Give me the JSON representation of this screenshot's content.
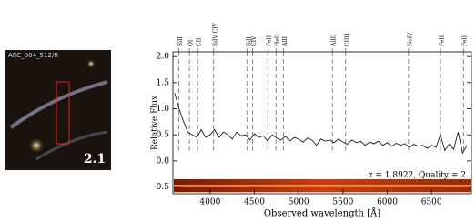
{
  "image_panel": {
    "name": "ARC_004_512/R",
    "number": "2.1"
  },
  "chart_data": {
    "type": "line",
    "xlabel": "Observed wavelength [Å]",
    "ylabel": "Relative Flux",
    "annotation": "z = 1.8922, Quality = 2",
    "xlim": [
      3580,
      6950
    ],
    "ylim": [
      -0.63,
      2.09
    ],
    "xticks": [
      4000,
      4500,
      5000,
      5500,
      6000,
      6500
    ],
    "yticks": [
      -0.5,
      0.0,
      0.5,
      1.0,
      1.5,
      2.0
    ],
    "line_markers": [
      {
        "label": "SiII",
        "x": 3645
      },
      {
        "label": "OI",
        "x": 3766
      },
      {
        "label": "CII",
        "x": 3859
      },
      {
        "label": "SiIV CIV",
        "x": 4040
      },
      {
        "label": "SiII",
        "x": 4420
      },
      {
        "label": "CIV",
        "x": 4480
      },
      {
        "label": "FeII",
        "x": 4651
      },
      {
        "label": "HeII",
        "x": 4743
      },
      {
        "label": "AlII",
        "x": 4830
      },
      {
        "label": "AlIII",
        "x": 5380
      },
      {
        "label": "CIII]",
        "x": 5530
      },
      {
        "label": "NeIV",
        "x": 6240
      },
      {
        "label": "FeII",
        "x": 6600
      },
      {
        "label": "FeII",
        "x": 6860
      }
    ],
    "series": [
      {
        "color": "#000000",
        "x": [
          3600,
          3650,
          3700,
          3750,
          3800,
          3850,
          3900,
          3950,
          4000,
          4050,
          4100,
          4150,
          4200,
          4250,
          4300,
          4350,
          4400,
          4450,
          4500,
          4550,
          4600,
          4650,
          4700,
          4750,
          4800,
          4850,
          4900,
          4950,
          5000,
          5050,
          5100,
          5150,
          5200,
          5250,
          5300,
          5350,
          5400,
          5450,
          5500,
          5550,
          5600,
          5650,
          5700,
          5750,
          5800,
          5850,
          5900,
          5950,
          6000,
          6050,
          6100,
          6150,
          6200,
          6250,
          6300,
          6350,
          6400,
          6450,
          6500,
          6550,
          6600,
          6650,
          6700,
          6750,
          6800,
          6850,
          6900
        ],
        "values": [
          1.3,
          1.0,
          0.75,
          0.55,
          0.5,
          0.45,
          0.6,
          0.45,
          0.5,
          0.6,
          0.45,
          0.55,
          0.5,
          0.42,
          0.55,
          0.48,
          0.5,
          0.4,
          0.52,
          0.45,
          0.48,
          0.38,
          0.5,
          0.44,
          0.4,
          0.47,
          0.38,
          0.45,
          0.42,
          0.36,
          0.44,
          0.4,
          0.3,
          0.42,
          0.38,
          0.4,
          0.35,
          0.42,
          0.36,
          0.32,
          0.4,
          0.35,
          0.38,
          0.3,
          0.36,
          0.33,
          0.38,
          0.3,
          0.35,
          0.28,
          0.34,
          0.3,
          0.33,
          0.26,
          0.32,
          0.28,
          0.3,
          0.24,
          0.3,
          0.26,
          0.5,
          0.2,
          0.32,
          0.22,
          0.55,
          0.15,
          0.3
        ]
      }
    ]
  }
}
